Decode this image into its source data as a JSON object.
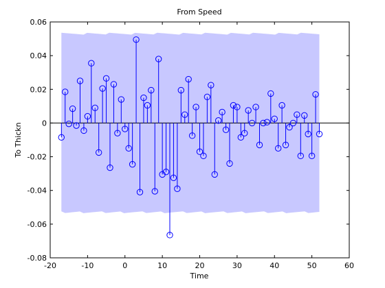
{
  "chart_data": {
    "type": "scatter",
    "title": "From Speed",
    "xlabel": "Time",
    "ylabel": "To Thickn",
    "xlim": [
      -20,
      60
    ],
    "ylim": [
      -0.08,
      0.06
    ],
    "xticks": [
      -20,
      -10,
      0,
      10,
      20,
      30,
      40,
      50,
      60
    ],
    "yticks": [
      -0.08,
      -0.06,
      -0.04,
      -0.02,
      0,
      0.02,
      0.04,
      0.06
    ],
    "xtick_labels": [
      "-20",
      "-10",
      "0",
      "10",
      "20",
      "30",
      "40",
      "50",
      "60"
    ],
    "ytick_labels": [
      "-0.08",
      "-0.06",
      "-0.04",
      "-0.02",
      "0",
      "0.02",
      "0.04",
      "0.06"
    ],
    "grid": false,
    "confidence_band": {
      "x_range": [
        -17,
        52
      ],
      "upper": 0.053,
      "lower": -0.053
    },
    "series": [
      {
        "style": "stem",
        "x": [
          -17,
          -16,
          -15,
          -14,
          -13,
          -12,
          -11,
          -10,
          -9,
          -8,
          -7,
          -6,
          -5,
          -4,
          -3,
          -2,
          -1,
          0,
          1,
          2,
          3,
          4,
          5,
          6,
          7,
          8,
          9,
          10,
          11,
          12,
          13,
          14,
          15,
          16,
          17,
          18,
          19,
          20,
          21,
          22,
          23,
          24,
          25,
          26,
          27,
          28,
          29,
          30,
          31,
          32,
          33,
          34,
          35,
          36,
          37,
          38,
          39,
          40,
          41,
          42,
          43,
          44,
          45,
          46,
          47,
          48,
          49,
          50,
          51,
          52
        ],
        "values": [
          -0.0085,
          0.0185,
          -0.0005,
          0.0085,
          -0.0015,
          0.025,
          -0.0045,
          0.004,
          0.0355,
          0.009,
          -0.0175,
          0.0205,
          0.0265,
          -0.0265,
          0.023,
          -0.006,
          0.014,
          -0.0035,
          -0.015,
          -0.0245,
          0.0495,
          -0.041,
          0.015,
          0.0105,
          0.0195,
          -0.0405,
          0.038,
          -0.0305,
          -0.029,
          -0.0665,
          -0.0325,
          -0.039,
          0.0195,
          0.005,
          0.026,
          -0.0075,
          0.0095,
          -0.017,
          -0.0195,
          0.0155,
          0.0225,
          -0.0305,
          0.0015,
          0.0065,
          -0.004,
          -0.024,
          0.0105,
          0.0095,
          -0.0085,
          -0.006,
          0.0075,
          0.0,
          0.0095,
          -0.013,
          0.0,
          0.0005,
          0.0175,
          0.0025,
          -0.015,
          0.0105,
          -0.013,
          -0.0025,
          0.0,
          0.005,
          -0.0195,
          0.0045,
          -0.0065,
          -0.0195,
          0.017,
          -0.0065
        ]
      }
    ]
  },
  "colors": {
    "band": "#c8c8ff",
    "stem": "#0000ff",
    "axis": "#000000",
    "zero_line": "#000000",
    "background": "#ffffff"
  }
}
